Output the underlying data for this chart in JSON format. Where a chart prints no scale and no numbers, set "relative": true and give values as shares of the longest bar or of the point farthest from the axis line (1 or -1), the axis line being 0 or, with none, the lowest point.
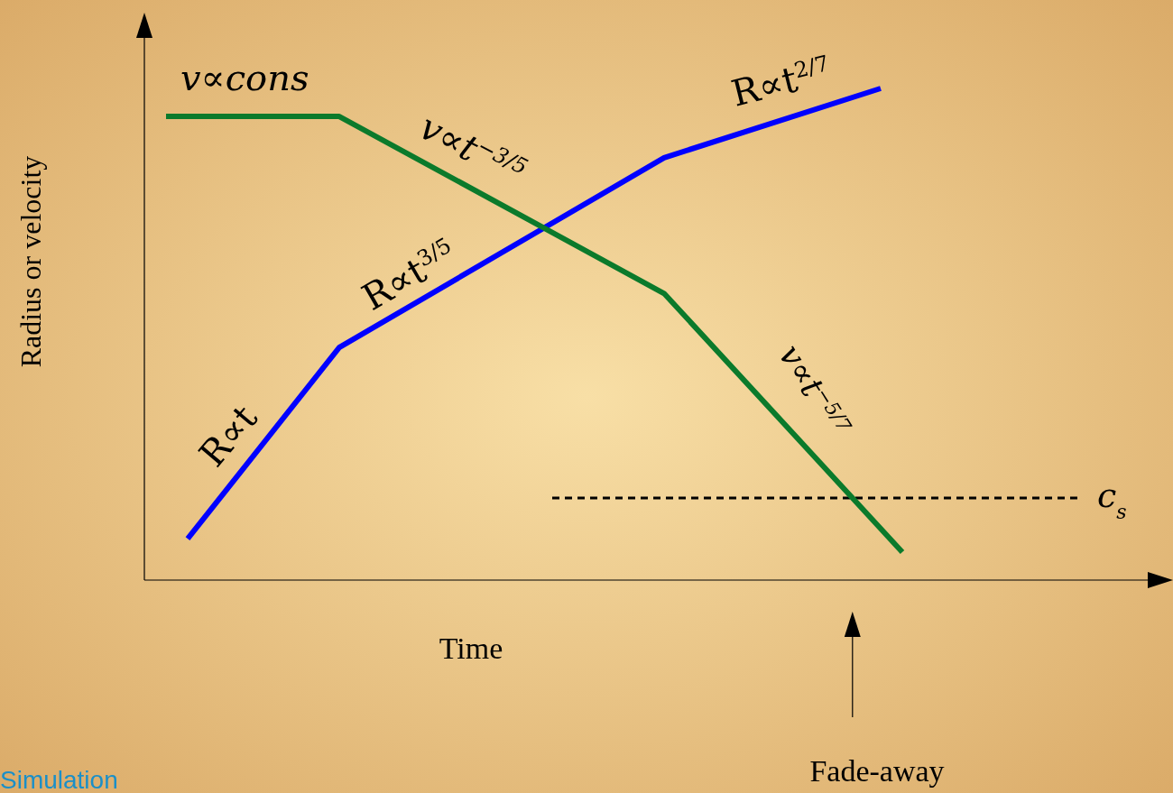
{
  "chart_data": {
    "type": "line",
    "relative": true,
    "xlabel": "Time",
    "ylabel": "Radius or velocity",
    "categories": [
      null,
      null,
      null,
      null,
      null,
      null,
      null,
      null,
      null,
      null,
      null,
      null,
      null,
      null,
      null,
      null,
      null,
      null,
      null,
      null,
      null,
      null,
      null,
      null,
      null,
      null,
      null,
      null,
      null,
      null,
      null,
      null,
      null,
      null,
      null,
      null,
      null,
      null,
      null,
      null,
      null,
      null,
      null,
      null,
      null,
      null,
      null,
      null
    ],
    "series": [
      {
        "color": "#0000ff",
        "values": [
          null,
          null,
          0.084,
          null,
          null,
          null,
          null,
          null,
          null,
          0.473,
          null,
          null,
          null,
          null,
          null,
          null,
          null,
          null,
          null,
          null,
          null,
          null,
          null,
          null,
          0.859,
          null,
          null,
          null,
          null,
          null,
          null,
          null,
          null,
          null,
          1,
          null,
          null,
          null,
          null,
          null,
          null,
          null,
          null,
          null,
          null,
          null,
          null,
          null
        ]
      },
      {
        "color": "#0b7a2b",
        "values": [
          null,
          0.943,
          null,
          null,
          null,
          null,
          null,
          null,
          null,
          0.943,
          null,
          null,
          null,
          null,
          null,
          null,
          null,
          null,
          null,
          null,
          null,
          null,
          null,
          null,
          0.583,
          null,
          null,
          null,
          null,
          null,
          null,
          null,
          null,
          null,
          null,
          0.057,
          null,
          null,
          null,
          null,
          null,
          null,
          null,
          null,
          null,
          null,
          null,
          null
        ]
      }
    ],
    "line_style": "solid",
    "ref_lines": [
      {
        "axis": "y",
        "value": 0.167,
        "label": "c$_{s}$",
        "color": "#000000",
        "line_style": "dashed"
      }
    ],
    "annotations": [
      "v∝cons",
      "v∝t$^{−3/5}$",
      "R∝t$^{2/7}$",
      "R∝t$^{3/5}$",
      "R∝t",
      "v∝t$^{−5/7}$",
      "Fade-away",
      "Simulation"
    ]
  }
}
